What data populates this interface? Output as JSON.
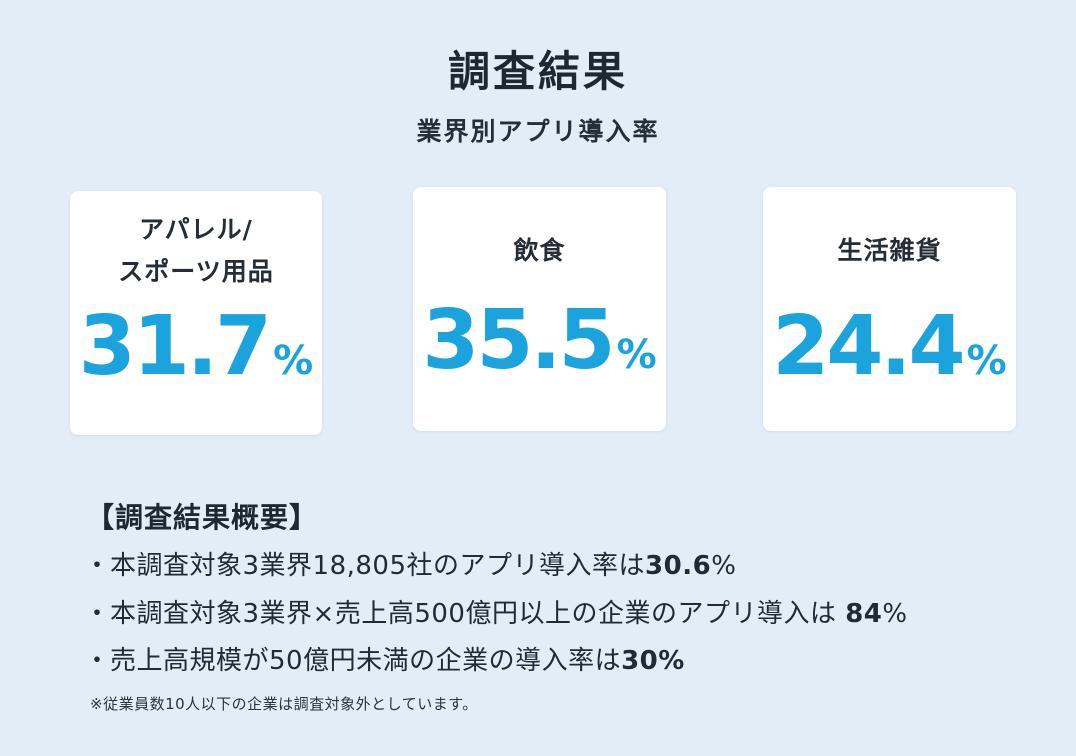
{
  "header": {
    "title": "調査結果",
    "subtitle": "業界別アプリ導入率"
  },
  "cards": [
    {
      "label_line1": "アパレル/",
      "label_line2": "スポーツ用品",
      "value": "31.7",
      "unit": "%"
    },
    {
      "label_line1": "飲食",
      "value": "35.5",
      "unit": "%"
    },
    {
      "label_line1": "生活雑貨",
      "value": "24.4",
      "unit": "%"
    }
  ],
  "summary": {
    "heading": "【調査結果概要】",
    "bullet_mark": "・",
    "items": [
      {
        "text": "本調査対象3業界18,805社のアプリ導入率は",
        "emphasis": "30.6",
        "suffix": "%"
      },
      {
        "text": "本調査対象3業界×売上高500億円以上の企業のアプリ導入は ",
        "emphasis": "84",
        "suffix": "%"
      },
      {
        "text": "売上高規模が50億円未満の企業の導入率は",
        "emphasis": "30%",
        "suffix": ""
      }
    ]
  },
  "footnote": "※従業員数10人以下の企業は調査対象外としています。",
  "colors": {
    "background": "#e3edf8",
    "accent": "#1aa3dc",
    "card": "#ffffff",
    "text": "#222a33"
  }
}
